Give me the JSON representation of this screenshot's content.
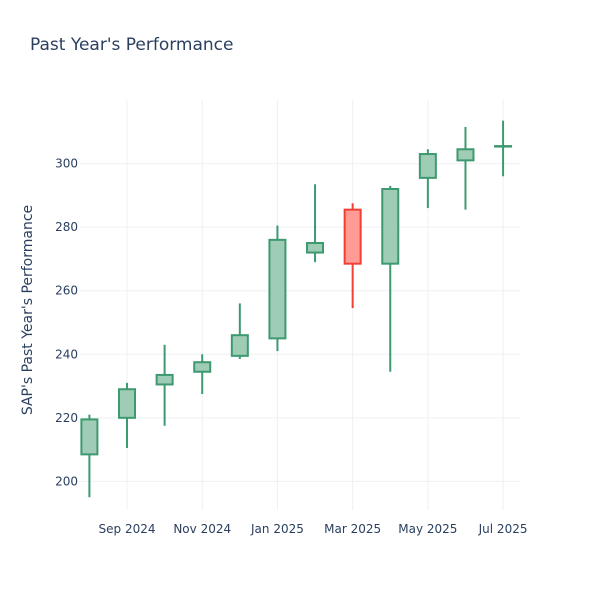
{
  "chart_data": {
    "type": "candlestick",
    "title": "Past Year's Performance",
    "xlabel": "",
    "ylabel": "SAP's Past Year's Performance",
    "x_ticks": [
      {
        "label": "Sep 2024",
        "x": 1.0
      },
      {
        "label": "Nov 2024",
        "x": 3.0
      },
      {
        "label": "Jan 2025",
        "x": 5.0
      },
      {
        "label": "Mar 2025",
        "x": 7.0
      },
      {
        "label": "May 2025",
        "x": 9.0
      },
      {
        "label": "Jul 2025",
        "x": 11.0
      }
    ],
    "y_ticks": [
      200,
      220,
      240,
      260,
      280,
      300
    ],
    "xlim": [
      -0.25,
      11.45
    ],
    "ylim": [
      191,
      320
    ],
    "grid": true,
    "colors": {
      "increasing_fill": "#9fccb5",
      "increasing_line": "#3d9970",
      "decreasing_fill": "#ff9a94",
      "decreasing_line": "#ee4035",
      "grid": "#eef0f3",
      "text": "#2a3f5f"
    },
    "candles": [
      {
        "x": 0.0,
        "open": 208.5,
        "high": 221.0,
        "low": 195.0,
        "close": 219.5
      },
      {
        "x": 1.0,
        "open": 220.0,
        "high": 231.0,
        "low": 210.5,
        "close": 229.0
      },
      {
        "x": 2.0,
        "open": 230.5,
        "high": 243.0,
        "low": 217.5,
        "close": 233.5
      },
      {
        "x": 3.0,
        "open": 234.5,
        "high": 240.0,
        "low": 227.5,
        "close": 237.5
      },
      {
        "x": 4.0,
        "open": 239.5,
        "high": 256.0,
        "low": 238.5,
        "close": 246.0
      },
      {
        "x": 5.0,
        "open": 245.0,
        "high": 280.5,
        "low": 241.0,
        "close": 276.0
      },
      {
        "x": 6.0,
        "open": 272.0,
        "high": 293.5,
        "low": 269.0,
        "close": 275.0
      },
      {
        "x": 7.0,
        "open": 285.5,
        "high": 287.5,
        "low": 254.5,
        "close": 268.5
      },
      {
        "x": 8.0,
        "open": 268.5,
        "high": 293.0,
        "low": 234.5,
        "close": 292.0
      },
      {
        "x": 9.0,
        "open": 295.5,
        "high": 304.5,
        "low": 286.0,
        "close": 303.0
      },
      {
        "x": 10.0,
        "open": 301.0,
        "high": 311.5,
        "low": 285.5,
        "close": 304.5
      },
      {
        "x": 11.0,
        "open": 305.5,
        "high": 313.5,
        "low": 296.0,
        "close": 305.5
      }
    ]
  }
}
